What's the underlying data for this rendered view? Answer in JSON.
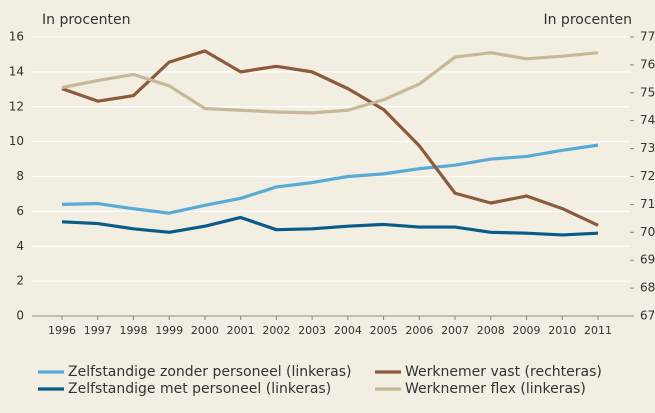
{
  "chart_data": {
    "type": "line",
    "y_label": "In procenten",
    "y2_label": "In procenten",
    "x": [
      1996,
      1997,
      1998,
      1999,
      2000,
      2001,
      2002,
      2003,
      2004,
      2005,
      2006,
      2007,
      2008,
      2009,
      2010,
      2011
    ],
    "xlim": [
      1996,
      2011
    ],
    "xticks": [
      1996,
      1997,
      1998,
      1999,
      2000,
      2001,
      2002,
      2003,
      2004,
      2005,
      2006,
      2007,
      2008,
      2009,
      2010,
      2011
    ],
    "ylim": [
      0,
      16
    ],
    "yticks": [
      0,
      2,
      4,
      6,
      8,
      10,
      12,
      14,
      16
    ],
    "y2lim": [
      67,
      77
    ],
    "y2ticks": [
      67,
      68,
      69,
      70,
      71,
      72,
      73,
      74,
      75,
      76,
      77
    ],
    "grid": true,
    "series": [
      {
        "name": "Zelfstandige zonder personeel (linkeras)",
        "color": "#5aaad8",
        "values": [
          6.4,
          6.45,
          6.15,
          5.9,
          6.35,
          6.75,
          7.4,
          7.65,
          8.0,
          8.15,
          8.45,
          8.65,
          9.0,
          9.15,
          9.5,
          9.8
        ]
      },
      {
        "name": "Zelfstandige met personeel (linkeras)",
        "color": "#0a5a8a",
        "values": [
          5.4,
          5.3,
          5.0,
          4.8,
          5.15,
          5.65,
          4.95,
          5.0,
          5.15,
          5.25,
          5.1,
          5.1,
          4.8,
          4.75,
          4.65,
          4.75
        ]
      },
      {
        "name": "Werknemer vast (rechteras)",
        "color": "#8c5a3c",
        "axis": "y2",
        "values": [
          75.15,
          74.7,
          74.9,
          76.1,
          76.5,
          75.75,
          75.95,
          75.75,
          75.15,
          74.4,
          73.1,
          71.4,
          71.05,
          71.3,
          70.85,
          70.25
        ]
      },
      {
        "name": "Werknemer flex (linkeras)",
        "color": "#c8b89a",
        "values": [
          13.1,
          13.5,
          13.85,
          13.2,
          11.9,
          11.8,
          11.7,
          11.65,
          11.8,
          12.4,
          13.3,
          14.85,
          15.1,
          14.75,
          14.9,
          15.1
        ]
      }
    ]
  }
}
